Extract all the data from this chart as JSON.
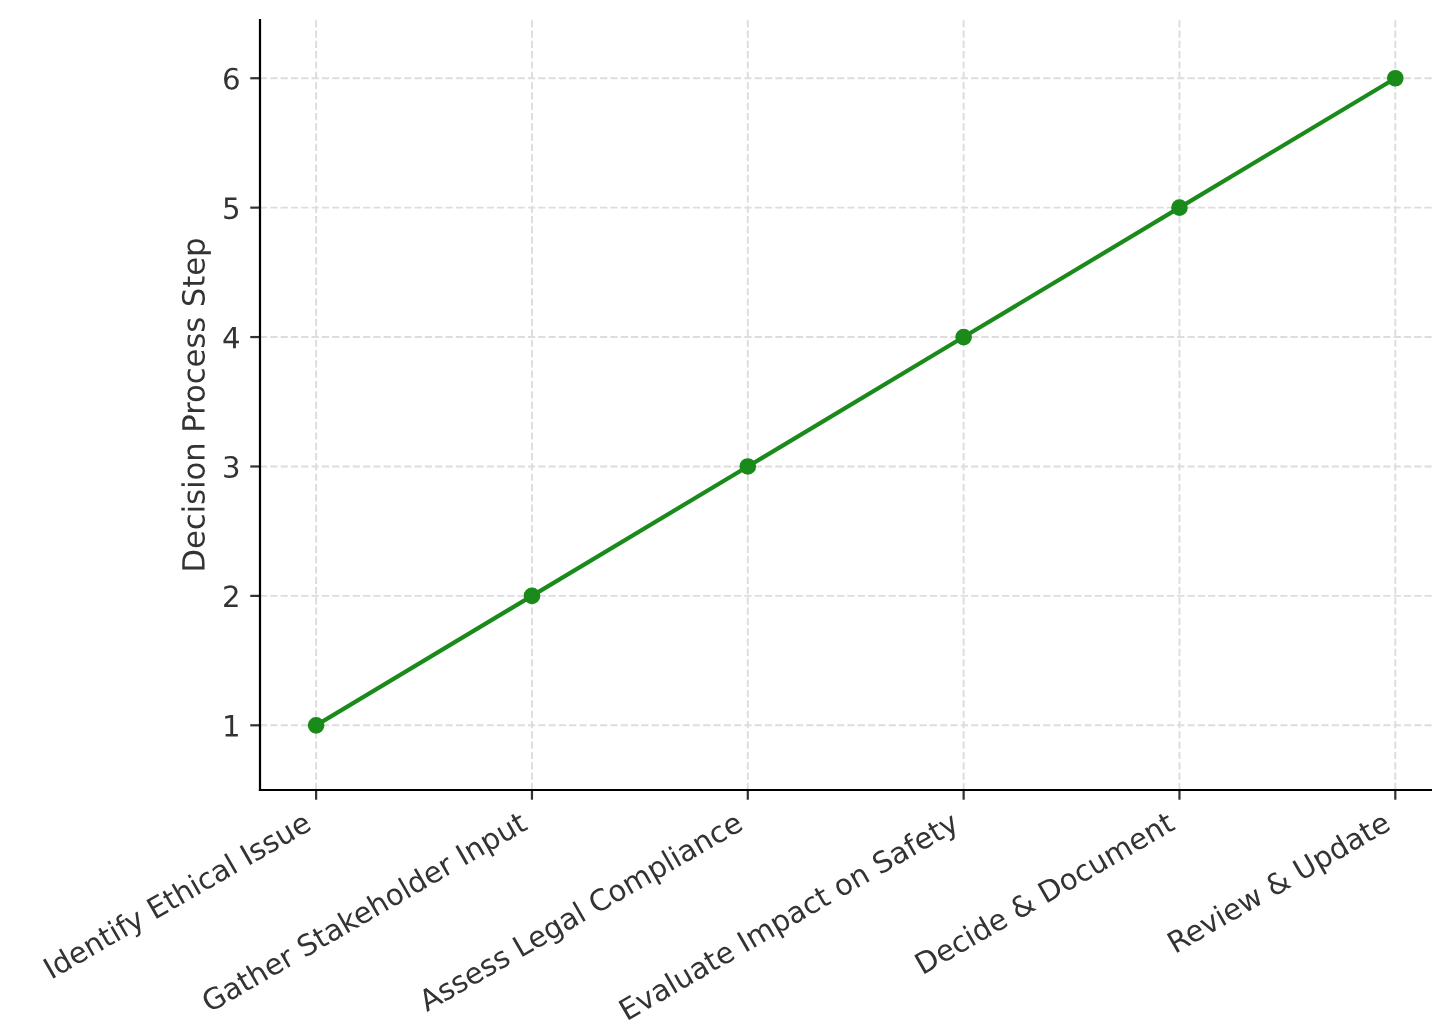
{
  "chart_data": {
    "type": "line",
    "ylabel": "Decision Process Step",
    "categories": [
      "Identify Ethical Issue",
      "Gather Stakeholder Input",
      "Assess Legal Compliance",
      "Evaluate Impact on Safety",
      "Decide & Document",
      "Review & Update"
    ],
    "series": [
      {
        "color": "#1a8a1a",
        "values": [
          1,
          2,
          3,
          4,
          5,
          6
        ]
      }
    ],
    "ylim": [
      0.5,
      6.45
    ],
    "yticks": [
      1,
      2,
      3,
      4,
      5,
      6
    ],
    "grid": true,
    "marker": "circle",
    "line_style": "solid"
  }
}
